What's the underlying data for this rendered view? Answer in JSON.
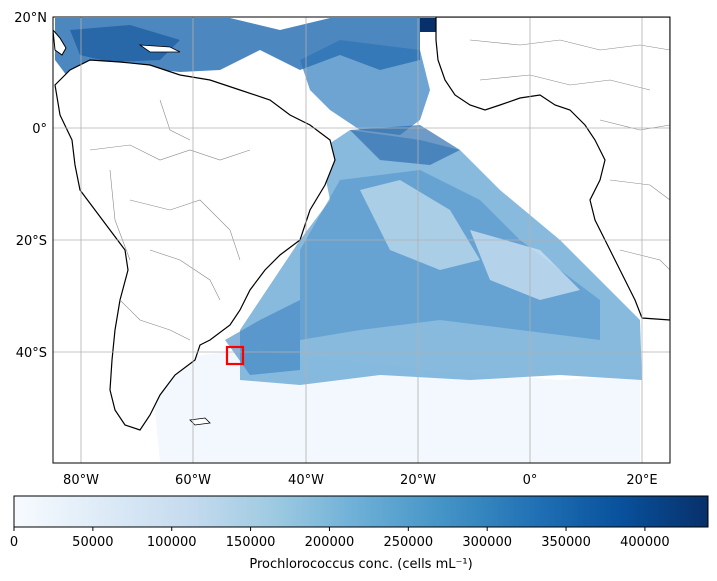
{
  "map": {
    "lat_ticks": [
      "20°N",
      "0°",
      "20°S",
      "40°S"
    ],
    "lon_ticks": [
      "80°W",
      "60°W",
      "40°W",
      "20°W",
      "0°",
      "20°E"
    ],
    "extent": {
      "lon_min": -85,
      "lon_max": 25,
      "lat_min": -60,
      "lat_max": 20
    },
    "highlight_box": {
      "lon": [
        -54,
        -51
      ],
      "lat": [
        -42,
        -39
      ],
      "color": "#ff0000"
    }
  },
  "colorbar": {
    "label": "Prochlorococcus conc. (cells mL⁻¹)",
    "ticks": [
      "0",
      "50000",
      "100000",
      "150000",
      "200000",
      "250000",
      "300000",
      "350000",
      "400000"
    ],
    "tick_values": [
      0,
      50000,
      100000,
      150000,
      200000,
      250000,
      300000,
      350000,
      400000
    ],
    "range": [
      0,
      440000
    ],
    "colormap": "Blues",
    "colors": [
      "#f7fbff",
      "#deebf7",
      "#c6dbef",
      "#9ecae1",
      "#6baed6",
      "#4292c6",
      "#2171b5",
      "#08519c",
      "#08306b"
    ]
  }
}
